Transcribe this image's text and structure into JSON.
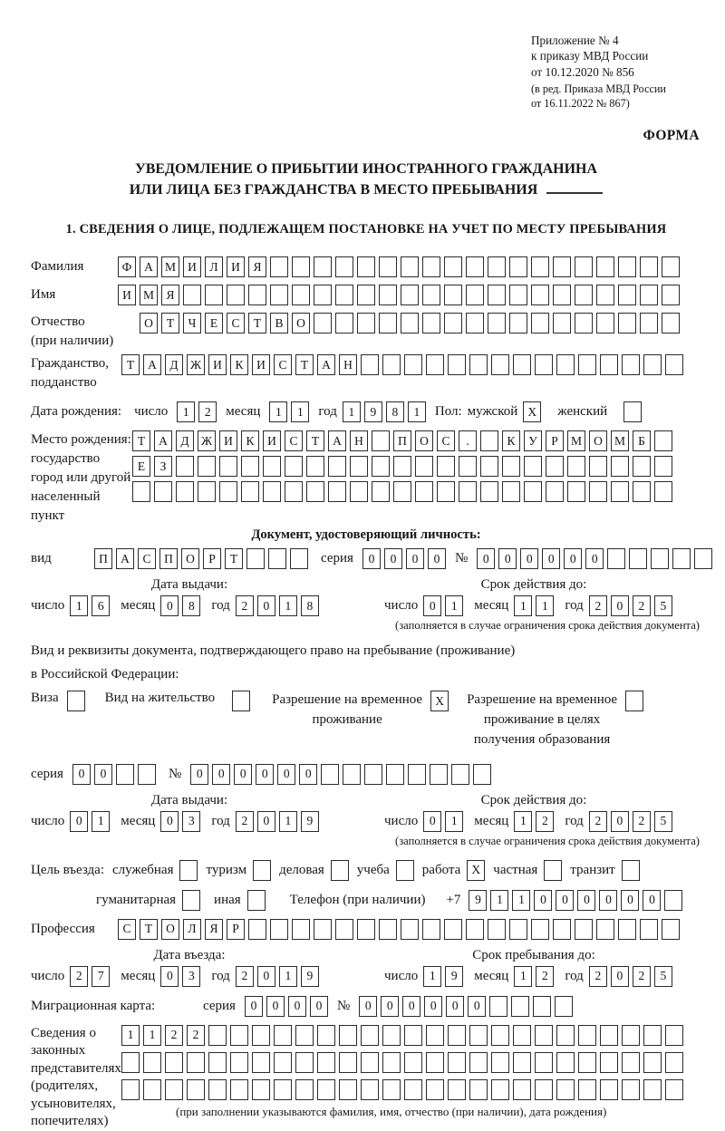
{
  "meta": {
    "ink": "#161616",
    "box_border": "#2b2b2b",
    "background": "#ffffff"
  },
  "header": {
    "appendix_line1": "Приложение № 4",
    "appendix_line2": "к приказу МВД России",
    "appendix_line3": "от 10.12.2020 № 856",
    "amendment_line1": "(в ред. Приказа МВД России",
    "amendment_line2": "от 16.11.2022 № 867)",
    "form_label": "ФОРМА"
  },
  "title": {
    "line1": "УВЕДОМЛЕНИЕ О ПРИБЫТИИ ИНОСТРАННОГО ГРАЖДАНИНА",
    "line2": "ИЛИ ЛИЦА БЕЗ ГРАЖДАНСТВА В МЕСТО ПРЕБЫВАНИЯ"
  },
  "section1_heading": "1. СВЕДЕНИЯ О ЛИЦЕ, ПОДЛЕЖАЩЕМ ПОСТАНОВКЕ НА УЧЕТ ПО МЕСТУ ПРЕБЫВАНИЯ",
  "common": {
    "day_label": "число",
    "month_label": "месяц",
    "year_label": "год",
    "series_label": "серия",
    "number_label": "№"
  },
  "person": {
    "surname": {
      "label": "Фамилия",
      "boxes": {
        "value": "ФАМИЛИЯ",
        "len": 26
      }
    },
    "firstname": {
      "label": "Имя",
      "boxes": {
        "value": "ИМЯ",
        "len": 26
      }
    },
    "patronymic": {
      "label1": "Отчество",
      "label2": "(при наличии)",
      "boxes": {
        "value": "ОТЧЕСТВО",
        "len": 25
      }
    },
    "citizenship": {
      "label1": "Гражданство,",
      "label2": "подданство",
      "boxes": {
        "value": "ТАДЖИКИСТАН",
        "len": 26
      }
    },
    "birth_date": {
      "label": "Дата рождения:",
      "day": {
        "value": "12",
        "len": 2
      },
      "month": {
        "value": "11",
        "len": 2
      },
      "year": {
        "value": "1981",
        "len": 4
      }
    },
    "sex": {
      "label": "Пол:",
      "male_label": "мужской",
      "male": {
        "value": "X",
        "len": 1
      },
      "female_label": "женский",
      "female": {
        "value": "",
        "len": 1
      }
    },
    "birth_place": {
      "label1": "Место рождения:",
      "label2": "государство",
      "label3": "город или другой",
      "label4": "населенный пункт",
      "row1": {
        "value": "ТАДЖИКИСТАН ПОС. КУРМОМБ",
        "len": 25
      },
      "row2": {
        "value": "ЕЗ",
        "len": 25
      },
      "row3": {
        "value": "",
        "len": 25
      }
    }
  },
  "identity_doc": {
    "heading": "Документ, удостоверяющий личность:",
    "type_label": "вид",
    "type": {
      "value": "ПАСПОРТ",
      "len": 10
    },
    "series": {
      "value": "0000",
      "len": 4
    },
    "number": {
      "value": "000000",
      "len": 11
    },
    "issue_heading": "Дата выдачи:",
    "issue": {
      "day": {
        "value": "16",
        "len": 2
      },
      "month": {
        "value": "08",
        "len": 2
      },
      "year": {
        "value": "2018",
        "len": 4
      }
    },
    "expiry_heading": "Срок действия до:",
    "expiry": {
      "day": {
        "value": "01",
        "len": 2
      },
      "month": {
        "value": "11",
        "len": 2
      },
      "year": {
        "value": "2025",
        "len": 4
      }
    },
    "note": "(заполняется в случае ограничения срока действия документа)"
  },
  "residence_doc": {
    "intro1": "Вид и реквизиты документа, подтверждающего право на пребывание (проживание)",
    "intro2": "в Российской Федерации:",
    "visa_label": "Виза",
    "visa": {
      "value": "",
      "len": 1
    },
    "residence_permit_label": "Вид на жительство",
    "residence_permit": {
      "value": "",
      "len": 1
    },
    "temp_permit_label1": "Разрешение на временное",
    "temp_permit_label2": "проживание",
    "temp_permit": {
      "value": "X",
      "len": 1
    },
    "edu_permit_label1": "Разрешение на временное",
    "edu_permit_label2": "проживание в целях",
    "edu_permit_label3": "получения образования",
    "edu_permit": {
      "value": "",
      "len": 1
    },
    "series": {
      "value": "00",
      "len": 4
    },
    "number": {
      "value": "000000",
      "len": 14
    },
    "issue_heading": "Дата выдачи:",
    "issue": {
      "day": {
        "value": "01",
        "len": 2
      },
      "month": {
        "value": "03",
        "len": 2
      },
      "year": {
        "value": "2019",
        "len": 4
      }
    },
    "expiry_heading": "Срок действия до:",
    "expiry": {
      "day": {
        "value": "01",
        "len": 2
      },
      "month": {
        "value": "12",
        "len": 2
      },
      "year": {
        "value": "2025",
        "len": 4
      }
    },
    "note": "(заполняется в случае ограничения срока действия документа)"
  },
  "visit": {
    "purpose_label": "Цель въезда:",
    "p_official_label": "служебная",
    "p_official": {
      "value": "",
      "len": 1
    },
    "p_tourism_label": "туризм",
    "p_tourism": {
      "value": "",
      "len": 1
    },
    "p_business_label": "деловая",
    "p_business": {
      "value": "",
      "len": 1
    },
    "p_study_label": "учеба",
    "p_study": {
      "value": "",
      "len": 1
    },
    "p_work_label": "работа",
    "p_work": {
      "value": "X",
      "len": 1
    },
    "p_private_label": "частная",
    "p_private": {
      "value": "",
      "len": 1
    },
    "p_transit_label": "транзит",
    "p_transit": {
      "value": "",
      "len": 1
    },
    "p_humanitarian_label": "гуманитарная",
    "p_humanitarian": {
      "value": "",
      "len": 1
    },
    "p_other_label": "иная",
    "p_other": {
      "value": "",
      "len": 1
    },
    "phone_label": "Телефон (при наличии)",
    "phone_prefix": "+7",
    "phone": {
      "value": "911000000",
      "len": 10
    },
    "profession_label": "Профессия",
    "profession": {
      "value": "СТОЛЯР",
      "len": 26
    },
    "entry_heading": "Дата въезда:",
    "entry": {
      "day": {
        "value": "27",
        "len": 2
      },
      "month": {
        "value": "03",
        "len": 2
      },
      "year": {
        "value": "2019",
        "len": 4
      }
    },
    "stay_heading": "Срок пребывания до:",
    "stay": {
      "day": {
        "value": "19",
        "len": 2
      },
      "month": {
        "value": "12",
        "len": 2
      },
      "year": {
        "value": "2025",
        "len": 4
      }
    },
    "migration_label": "Миграционная карта:",
    "mig_series": {
      "value": "0000",
      "len": 4
    },
    "mig_number": {
      "value": "000000",
      "len": 10
    }
  },
  "representatives": {
    "label1": "Сведения о",
    "label2": "законных",
    "label3": "представителях",
    "label4": "(родителях,",
    "label5": "усыновителях,",
    "label6": "попечителях)",
    "row1": {
      "value": "1122",
      "len": 26
    },
    "row2": {
      "value": "",
      "len": 26
    },
    "row3": {
      "value": "",
      "len": 26
    },
    "note": "(при заполнении указываются фамилия, имя, отчество (при наличии), дата рождения)"
  }
}
